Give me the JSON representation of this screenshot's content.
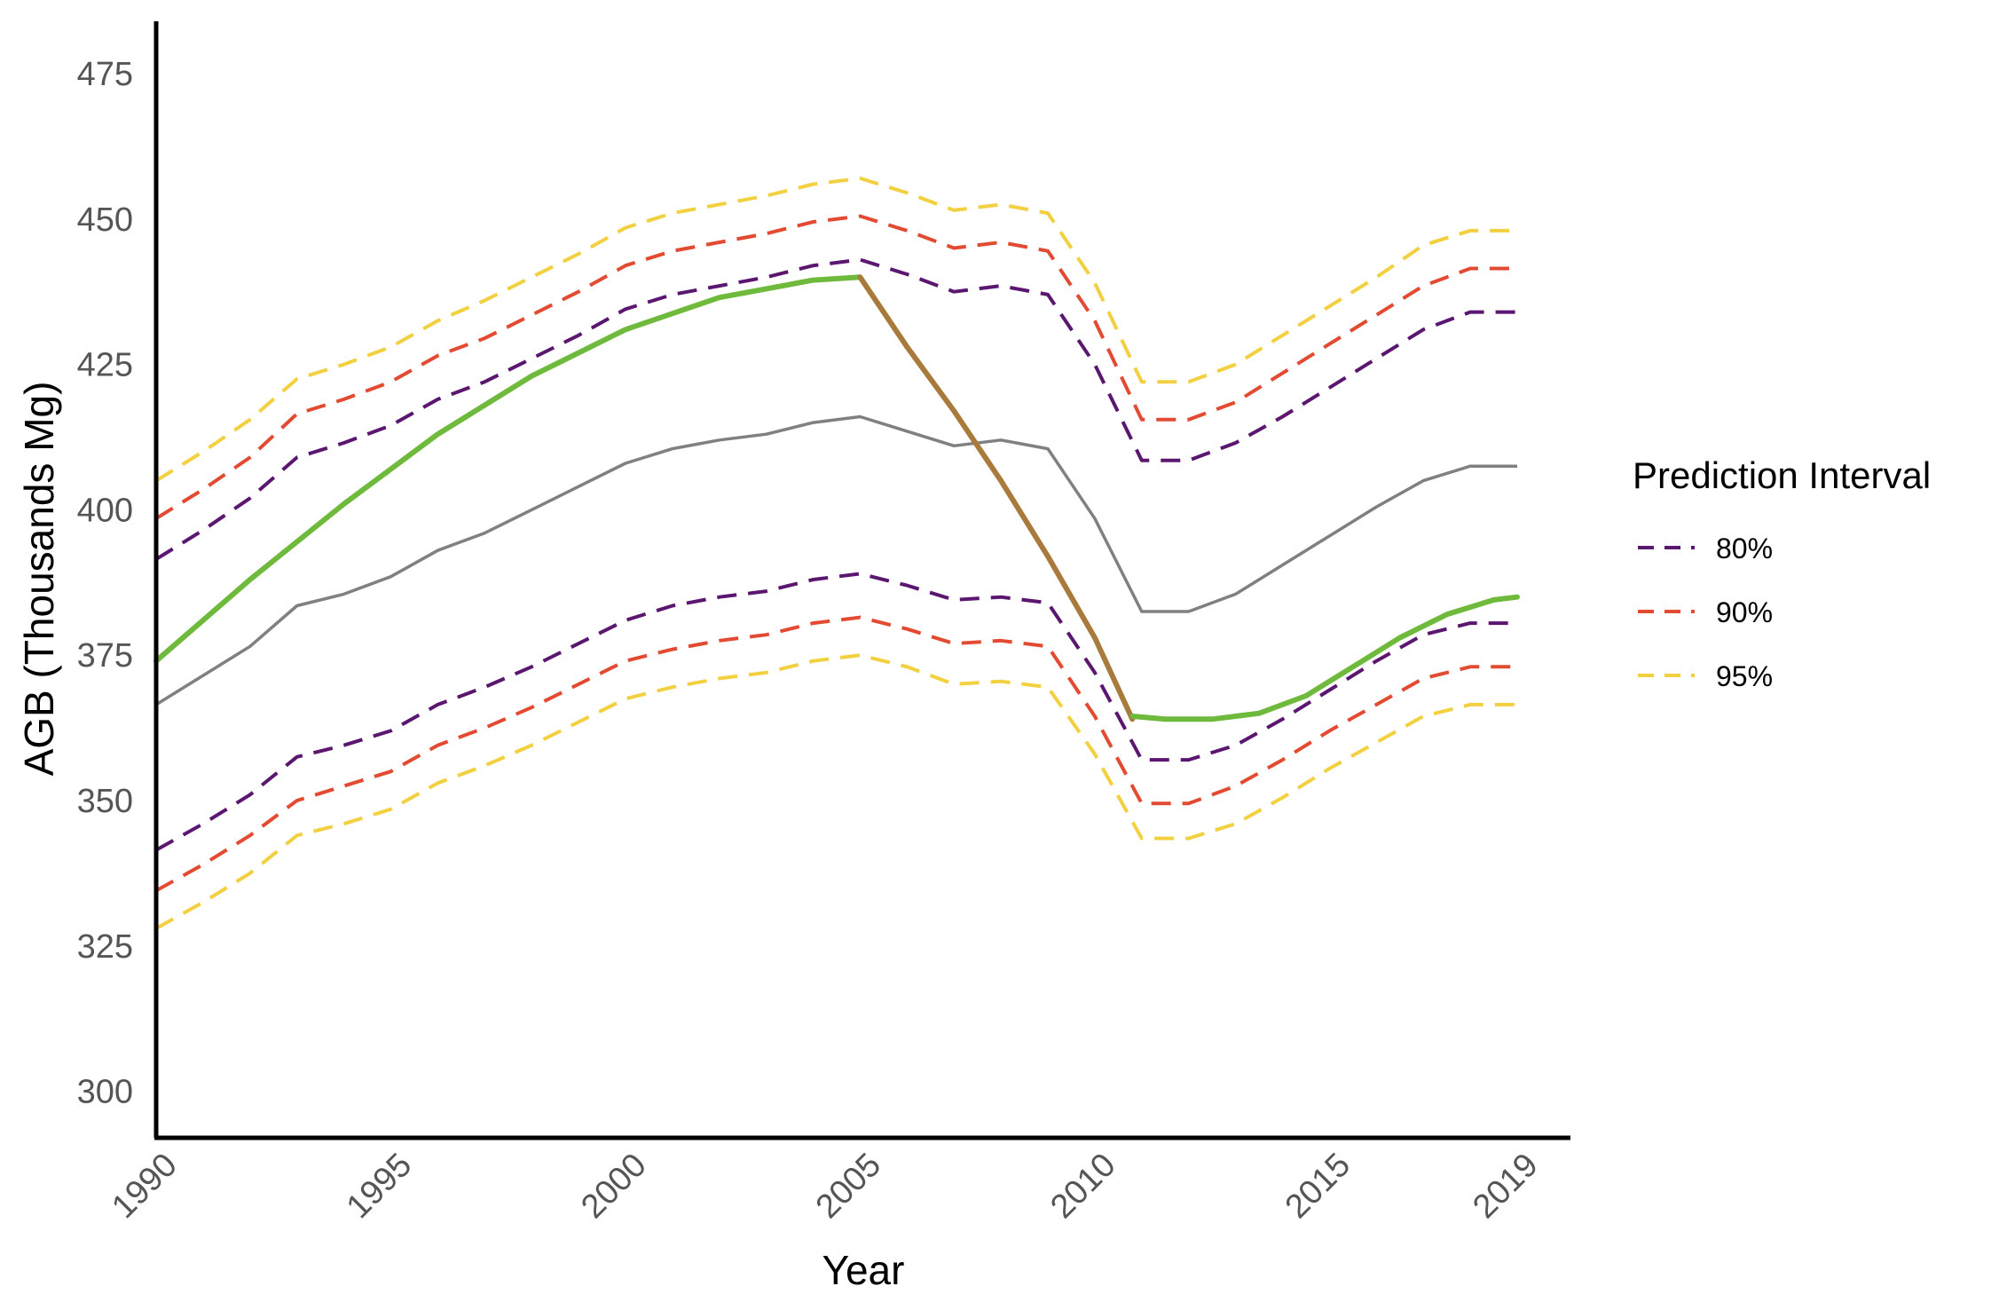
{
  "chart_data": {
    "type": "line",
    "xlabel": "Year",
    "ylabel": "AGB (Thousands Mg)",
    "xlim": [
      1990,
      2019
    ],
    "ylim": [
      292,
      484
    ],
    "x_ticks": [
      1990,
      1995,
      2000,
      2005,
      2010,
      2015,
      2019
    ],
    "y_ticks": [
      300,
      325,
      350,
      375,
      400,
      425,
      450,
      475
    ],
    "legend": {
      "title": "Prediction Interval",
      "placement": "right",
      "entries": [
        {
          "label": "80%",
          "color": "#5b1670"
        },
        {
          "label": "90%",
          "color": "#e24b32"
        },
        {
          "label": "95%",
          "color": "#f2d040"
        }
      ]
    },
    "band_x": [
      1990,
      1991,
      1992,
      1993,
      1994,
      1995,
      1996,
      1997,
      1998,
      1999,
      2000,
      2001,
      2002,
      2003,
      2004,
      2005,
      2006,
      2007,
      2008,
      2009,
      2010,
      2011,
      2012,
      2013,
      2014,
      2015,
      2016,
      2017,
      2018,
      2019
    ],
    "series": [
      {
        "name": "80%",
        "role": "upper",
        "color": "#5b1670",
        "dash": true,
        "values": [
          391.5,
          396.5,
          402,
          409,
          411.5,
          414.5,
          419,
          422,
          426,
          430,
          434.5,
          437,
          438.5,
          440,
          442,
          443,
          440.5,
          437.5,
          438.5,
          437,
          425,
          408.5,
          408.5,
          411.5,
          416,
          421,
          426,
          431,
          434,
          434
        ]
      },
      {
        "name": "80%",
        "role": "lower",
        "color": "#5b1670",
        "dash": true,
        "values": [
          341.5,
          346,
          351,
          357.5,
          359.5,
          362,
          366.5,
          369.5,
          373,
          377,
          381,
          383.5,
          385,
          386,
          388,
          389,
          387,
          384.5,
          385,
          384,
          372,
          357,
          357,
          359.5,
          364,
          369,
          374,
          378.5,
          380.5,
          380.5
        ]
      },
      {
        "name": "90%",
        "role": "upper",
        "color": "#e24b32",
        "dash": true,
        "values": [
          398.5,
          403.5,
          409,
          416.5,
          419,
          422,
          426.5,
          429.5,
          433.5,
          437.5,
          442,
          444.5,
          446,
          447.5,
          449.5,
          450.5,
          448,
          445,
          446,
          444.5,
          432.5,
          415.5,
          415.5,
          418.5,
          423.5,
          428.5,
          433.5,
          438.5,
          441.5,
          441.5
        ]
      },
      {
        "name": "90%",
        "role": "lower",
        "color": "#e24b32",
        "dash": true,
        "values": [
          334.5,
          339,
          344,
          350,
          352.5,
          355,
          359.5,
          362.5,
          366,
          370,
          374,
          376,
          377.5,
          378.5,
          380.5,
          381.5,
          379.5,
          377,
          377.5,
          376.5,
          364.5,
          349.5,
          349.5,
          352.5,
          357,
          362,
          366.5,
          371,
          373,
          373
        ]
      },
      {
        "name": "95%",
        "role": "upper",
        "color": "#f2d040",
        "dash": true,
        "values": [
          405,
          410,
          415.5,
          422.5,
          425,
          428,
          432.5,
          436,
          440,
          444,
          448.5,
          451,
          452.5,
          454,
          456,
          457,
          454.5,
          451.5,
          452.5,
          451,
          439,
          422,
          422,
          425,
          430,
          435,
          440,
          445.5,
          448,
          448
        ]
      },
      {
        "name": "95%",
        "role": "lower",
        "color": "#f2d040",
        "dash": true,
        "values": [
          328,
          332.5,
          337.5,
          344,
          346,
          348.5,
          353,
          356,
          359.5,
          363.5,
          367.5,
          369.5,
          371,
          372,
          374,
          375,
          373,
          370,
          370.5,
          369.5,
          358,
          343.5,
          343.5,
          346,
          350.5,
          355.5,
          360,
          364.5,
          366.5,
          366.5
        ]
      },
      {
        "role": "center",
        "color": "#808080",
        "dash": false,
        "values": [
          366.5,
          371.5,
          376.5,
          383.5,
          385.5,
          388.5,
          393,
          396,
          400,
          404,
          408,
          410.5,
          412,
          413,
          415,
          416,
          413.5,
          411,
          412,
          410.5,
          398.5,
          382.5,
          382.5,
          385.5,
          390.5,
          395.5,
          400.5,
          405,
          407.5,
          407.5
        ]
      }
    ],
    "trend_segments": [
      {
        "color": "#6fba3d",
        "x": [
          1990,
          1992,
          1994,
          1996,
          1998,
          2000,
          2002,
          2004,
          2005
        ],
        "y": [
          374,
          388,
          401,
          413,
          423,
          431,
          436.5,
          439.5,
          440
        ]
      },
      {
        "color": "#a87a3c",
        "x": [
          2005,
          2006,
          2007,
          2008,
          2009,
          2010,
          2010.8
        ],
        "y": [
          440,
          428,
          417,
          405,
          392,
          378,
          364
        ]
      },
      {
        "color": "#6fba3d",
        "x": [
          2010.8,
          2011.5,
          2012.5,
          2013.5,
          2014.5,
          2015.5,
          2016.5,
          2017.5,
          2018.5,
          2019
        ],
        "y": [
          364.5,
          364,
          364,
          365,
          368,
          373,
          378,
          382,
          384.5,
          385
        ]
      }
    ]
  }
}
